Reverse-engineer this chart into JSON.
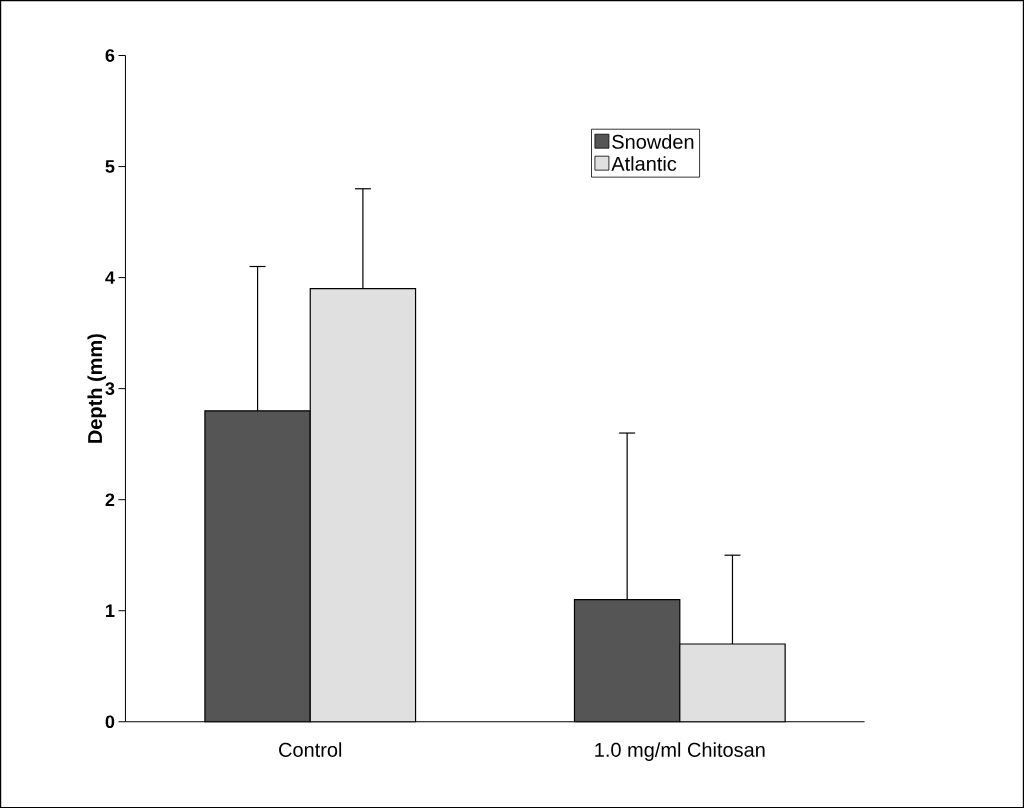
{
  "chart_data": {
    "type": "bar",
    "ylabel": "Depth (mm)",
    "categories": [
      "Control",
      "1.0 mg/ml Chitosan"
    ],
    "series": [
      {
        "name": "Snowden",
        "color": "#555555",
        "values": [
          2.8,
          1.1
        ],
        "errors": [
          1.3,
          1.5
        ]
      },
      {
        "name": "Atlantic",
        "color": "#e0e0e0",
        "values": [
          3.9,
          0.7
        ],
        "errors": [
          0.9,
          0.8
        ]
      }
    ],
    "ylim": [
      0,
      6
    ],
    "yticks": [
      0,
      1,
      2,
      3,
      4,
      5,
      6
    ],
    "grid": false,
    "legend": "top right"
  }
}
